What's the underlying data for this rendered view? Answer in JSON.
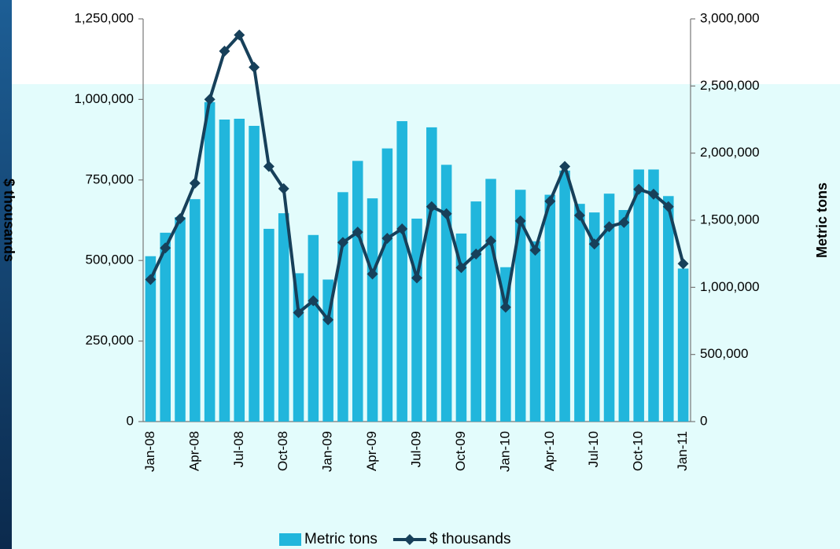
{
  "chart_data": {
    "type": "bar-line",
    "categories": [
      "Jan-08",
      null,
      null,
      "Apr-08",
      null,
      null,
      "Jul-08",
      null,
      null,
      "Oct-08",
      null,
      null,
      "Jan-09",
      null,
      null,
      "Apr-09",
      null,
      null,
      "Jul-09",
      null,
      null,
      "Oct-09",
      null,
      null,
      "Jan-10",
      null,
      null,
      "Apr-10",
      null,
      null,
      "Jul-10",
      null,
      null,
      "Oct-10",
      null,
      null,
      "Jan-11"
    ],
    "series": [
      {
        "name": "Metric tons",
        "color": "#21b6dc",
        "kind": "bar",
        "axis": "y2",
        "values": [
          1232000,
          1407000,
          1523000,
          1657000,
          2380000,
          2250000,
          2256000,
          2203000,
          1436000,
          1552000,
          1105000,
          1390000,
          1058000,
          1709000,
          1942000,
          1663000,
          2035000,
          2238000,
          1512000,
          2192000,
          1913000,
          1401000,
          1640000,
          1808000,
          1150000,
          1727000,
          1343000,
          1690000,
          1870000,
          1622000,
          1558000,
          1698000,
          1576000,
          1878000,
          1878000,
          1680000,
          1140000
        ]
      },
      {
        "name": "$ thousands",
        "color": "#17405a",
        "kind": "line",
        "axis": "y",
        "values": [
          441000,
          539000,
          630000,
          740000,
          1000000,
          1150000,
          1200000,
          1100000,
          792000,
          723000,
          338000,
          375000,
          316000,
          556000,
          588000,
          458000,
          569000,
          598000,
          446000,
          667000,
          645000,
          478000,
          520000,
          561000,
          355000,
          623000,
          532000,
          684000,
          792000,
          640000,
          551000,
          605000,
          618000,
          721000,
          706000,
          667000,
          490000
        ]
      }
    ],
    "ylabel": "$ thousands",
    "y2label": "Metric tons",
    "ylim": [
      0,
      1250000
    ],
    "yticks": [
      0,
      {
        "value": 250000,
        "label": "250,000"
      },
      {
        "value": 500000,
        "label": "500,000"
      },
      {
        "value": 750000,
        "label": "750,000"
      },
      {
        "value": 1000000,
        "label": "1,000,000"
      },
      {
        "value": 1250000,
        "label": "1,250,000"
      }
    ],
    "y2lim": [
      0,
      3000000
    ],
    "y2ticks": [
      0,
      {
        "value": 500000,
        "label": "500,000"
      },
      {
        "value": 1000000,
        "label": "1,000,000"
      },
      {
        "value": 1500000,
        "label": "1,500,000"
      },
      {
        "value": 2000000,
        "label": "2,000,000"
      },
      {
        "value": 2500000,
        "label": "2,500,000"
      },
      {
        "value": 3000000,
        "label": "3,000,000"
      }
    ],
    "legend": "bottom"
  }
}
